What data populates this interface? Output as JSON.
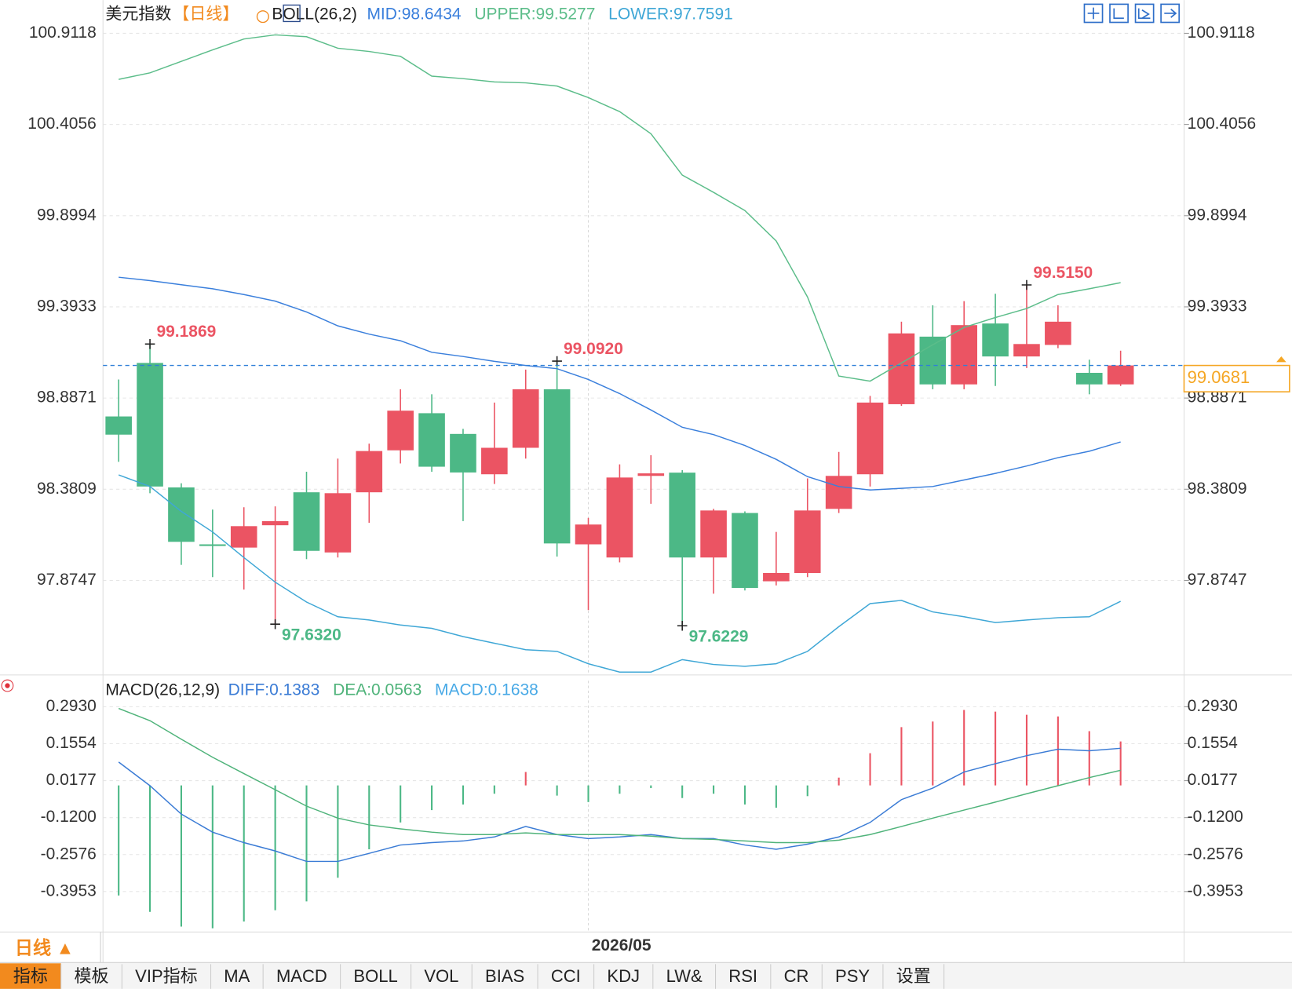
{
  "chart_data": [
    {
      "type": "candlestick",
      "title": "美元指数",
      "period": "【日线】",
      "indicator": "BOLL(26,2)",
      "categories": [
        null,
        null,
        null,
        null,
        null,
        null,
        null,
        null,
        null,
        null,
        null,
        null,
        null,
        null,
        null,
        "2026/05",
        null,
        null,
        null,
        null,
        null,
        null,
        null,
        null,
        null,
        null,
        null,
        null,
        null,
        null,
        null,
        null,
        null
      ],
      "open": [
        98.785,
        99.082,
        98.391,
        98.075,
        98.057,
        98.181,
        98.364,
        98.03,
        98.364,
        98.597,
        98.803,
        98.688,
        98.464,
        98.611,
        98.936,
        98.075,
        98.002,
        98.455,
        98.473,
        98.002,
        98.249,
        97.87,
        97.916,
        98.272,
        98.464,
        98.853,
        99.228,
        98.963,
        99.301,
        99.118,
        99.182,
        99.027,
        98.963
      ],
      "high": [
        98.99,
        99.1869,
        98.414,
        98.268,
        98.281,
        98.286,
        98.478,
        98.551,
        98.634,
        98.936,
        98.908,
        98.716,
        98.862,
        99.045,
        99.092,
        98.222,
        98.519,
        98.57,
        98.487,
        98.272,
        98.258,
        98.144,
        98.441,
        98.588,
        98.899,
        99.311,
        99.402,
        99.425,
        99.466,
        99.515,
        99.402,
        99.1,
        99.15
      ],
      "low": [
        98.533,
        98.359,
        97.961,
        97.893,
        97.824,
        97.632,
        97.993,
        98.002,
        98.195,
        98.524,
        98.478,
        98.204,
        98.41,
        98.551,
        98.007,
        97.71,
        97.975,
        98.3,
        97.6229,
        97.801,
        97.819,
        97.847,
        97.893,
        98.249,
        98.396,
        98.844,
        98.936,
        98.936,
        98.954,
        99.054,
        99.164,
        98.908,
        98.954
      ],
      "close": [
        98.684,
        98.396,
        98.089,
        98.066,
        98.176,
        98.204,
        98.039,
        98.359,
        98.593,
        98.817,
        98.506,
        98.474,
        98.611,
        98.936,
        98.08,
        98.185,
        98.446,
        98.469,
        98.002,
        98.263,
        97.833,
        97.916,
        98.263,
        98.455,
        98.862,
        99.246,
        98.963,
        99.292,
        99.118,
        99.187,
        99.311,
        98.963,
        99.0681
      ],
      "up_color": "#eb5463",
      "down_color": "#4cb886",
      "series": [
        {
          "name": "MID:98.6434",
          "color": "#3a7fdc",
          "values": [
            99.558,
            99.539,
            99.516,
            99.494,
            99.462,
            99.425,
            99.365,
            99.288,
            99.242,
            99.205,
            99.141,
            99.118,
            99.091,
            99.068,
            99.05,
            98.99,
            98.912,
            98.821,
            98.725,
            98.684,
            98.624,
            98.547,
            98.451,
            98.396,
            98.377,
            98.386,
            98.396,
            98.432,
            98.469,
            98.51,
            98.556,
            98.592,
            98.6434
          ]
        },
        {
          "name": "UPPER:99.5277",
          "color": "#5cbd8a",
          "values": [
            100.656,
            100.692,
            100.756,
            100.82,
            100.88,
            100.903,
            100.893,
            100.829,
            100.811,
            100.784,
            100.674,
            100.66,
            100.642,
            100.637,
            100.619,
            100.555,
            100.477,
            100.354,
            100.125,
            100.029,
            99.928,
            99.759,
            99.448,
            99.009,
            98.981,
            99.082,
            99.183,
            99.279,
            99.334,
            99.384,
            99.462,
            99.494,
            99.5277
          ]
        },
        {
          "name": "LOWER:97.7591",
          "color": "#3fa7d6",
          "values": [
            98.46,
            98.396,
            98.258,
            98.144,
            98.002,
            97.865,
            97.755,
            97.673,
            97.655,
            97.627,
            97.609,
            97.563,
            97.526,
            97.49,
            97.481,
            97.412,
            97.366,
            97.366,
            97.435,
            97.408,
            97.398,
            97.412,
            97.481,
            97.618,
            97.746,
            97.764,
            97.7,
            97.673,
            97.641,
            97.655,
            97.668,
            97.673,
            97.7591
          ]
        }
      ],
      "annotations": [
        "99.1869",
        "99.0920",
        "97.6320",
        "97.6229",
        "99.5150"
      ],
      "last_price_label": "99.0681",
      "ylim": [
        97.35,
        101.0
      ],
      "yticks": [
        100.9118,
        100.4056,
        99.8994,
        99.3933,
        98.8871,
        98.3809,
        97.8747
      ],
      "grid": true
    },
    {
      "type": "macd",
      "title": "MACD(26,12,9)",
      "series": [
        {
          "name": "DIFF:0.1383",
          "color": "#3a7bd5",
          "values": [
            0.087,
            -0.001,
            -0.107,
            -0.174,
            -0.213,
            -0.244,
            -0.283,
            -0.283,
            -0.253,
            -0.222,
            -0.213,
            -0.207,
            -0.192,
            -0.153,
            -0.183,
            -0.198,
            -0.192,
            -0.183,
            -0.198,
            -0.198,
            -0.222,
            -0.238,
            -0.219,
            -0.192,
            -0.138,
            -0.053,
            -0.01,
            0.05,
            0.081,
            0.111,
            0.135,
            0.129,
            0.1383
          ]
        },
        {
          "name": "DEA:0.0563",
          "color": "#4fb37a",
          "values": [
            0.287,
            0.241,
            0.172,
            0.105,
            0.044,
            -0.016,
            -0.077,
            -0.122,
            -0.147,
            -0.162,
            -0.174,
            -0.183,
            -0.183,
            -0.177,
            -0.183,
            -0.183,
            -0.183,
            -0.189,
            -0.198,
            -0.201,
            -0.207,
            -0.213,
            -0.213,
            -0.204,
            -0.183,
            -0.153,
            -0.122,
            -0.092,
            -0.062,
            -0.031,
            -0.001,
            0.029,
            0.0563
          ]
        }
      ],
      "histogram": {
        "name": "MACD:0.1638",
        "color": "#48a9e6",
        "values": [
          -0.41,
          -0.471,
          -0.526,
          -0.532,
          -0.507,
          -0.465,
          -0.432,
          -0.344,
          -0.238,
          -0.138,
          -0.092,
          -0.071,
          -0.031,
          0.05,
          -0.038,
          -0.062,
          -0.031,
          -0.01,
          -0.047,
          -0.031,
          -0.071,
          -0.083,
          -0.04,
          0.029,
          0.12,
          0.217,
          0.238,
          0.281,
          0.275,
          0.263,
          0.257,
          0.202,
          0.1638
        ]
      },
      "up_color": "#eb5463",
      "down_color": "#4cb886",
      "ylim": [
        -0.54,
        0.39
      ],
      "yticks": [
        {
          "value": 0.293,
          "label": "0.2930"
        },
        0.1554,
        0.0177,
        {
          "value": -0.12,
          "label": "-0.1200"
        },
        -0.2576,
        -0.3953
      ],
      "grid": true
    }
  ],
  "footer": {
    "period_tab": "日线 ▲",
    "tabs": [
      "指标",
      "模板",
      "VIP指标",
      "MA",
      "MACD",
      "BOLL",
      "VOL",
      "BIAS",
      "CCI",
      "KDJ",
      "LW&",
      "RSI",
      "CR",
      "PSY",
      "设置"
    ]
  }
}
